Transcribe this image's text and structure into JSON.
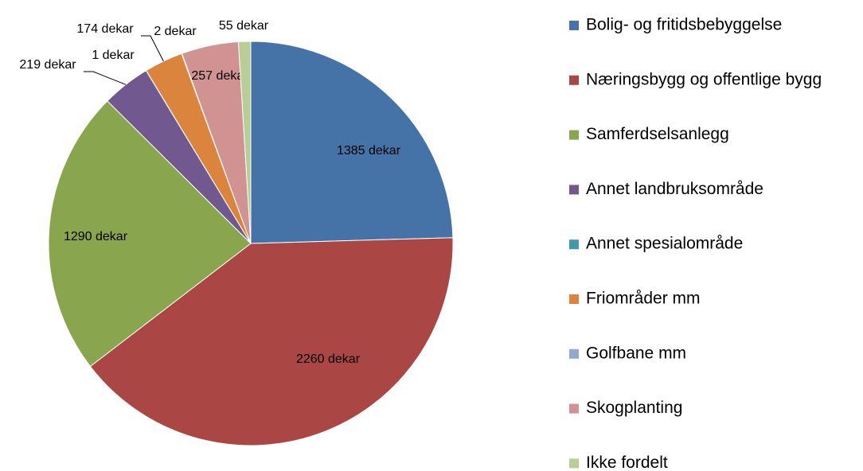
{
  "chart_data": {
    "type": "pie",
    "categories": [
      "Bolig- og fritidsbebyggelse",
      "Næringsbygg og offentlige bygg",
      "Samferdselsanlegg",
      "Annet landbruksområde",
      "Annet spesialområde",
      "Friområder mm",
      "Golfbane mm",
      "Skogplanting",
      "Ikke fordelt"
    ],
    "values": [
      1385,
      2260,
      1290,
      219,
      1,
      174,
      2,
      257,
      55
    ],
    "value_labels": [
      "1385 dekar",
      "2260 dekar",
      "1290 dekar",
      "219 dekar",
      "1 dekar",
      "174 dekar",
      "2 dekar",
      "257 dekar",
      "55 dekar"
    ],
    "colors": [
      "#4572a7",
      "#aa4643",
      "#89a54e",
      "#71588f",
      "#4198af",
      "#db843d",
      "#93a9cf",
      "#d19392",
      "#b9cd96"
    ],
    "legend": "right"
  }
}
